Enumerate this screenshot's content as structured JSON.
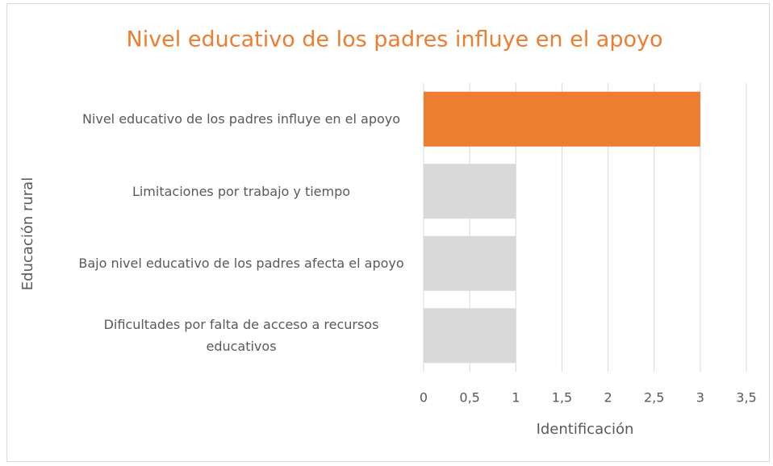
{
  "chart_data": {
    "type": "bar",
    "orientation": "horizontal",
    "title": "Nivel educativo de los padres influye en el apoyo",
    "x_label": "Identificación",
    "y_label": "Educación rural",
    "categories": [
      "Nivel educativo de los padres influye en el apoyo",
      "Limitaciones por trabajo y tiempo",
      "Bajo nivel educativo de los padres afecta el apoyo",
      "Dificultades por falta de acceso a recursos educativos"
    ],
    "values": [
      3,
      1,
      1,
      1
    ],
    "colors": [
      "#ed7d31",
      "#d9d9d9",
      "#d9d9d9",
      "#d9d9d9"
    ],
    "xlim": [
      0,
      3.5
    ],
    "xticks": [
      0,
      {
        "value": 0.5,
        "label": "0,5"
      },
      1,
      {
        "value": 1.5,
        "label": "1,5"
      },
      2,
      {
        "value": 2.5,
        "label": "2,5"
      },
      3,
      {
        "value": 3.5,
        "label": "3,5"
      }
    ],
    "grid": true
  }
}
